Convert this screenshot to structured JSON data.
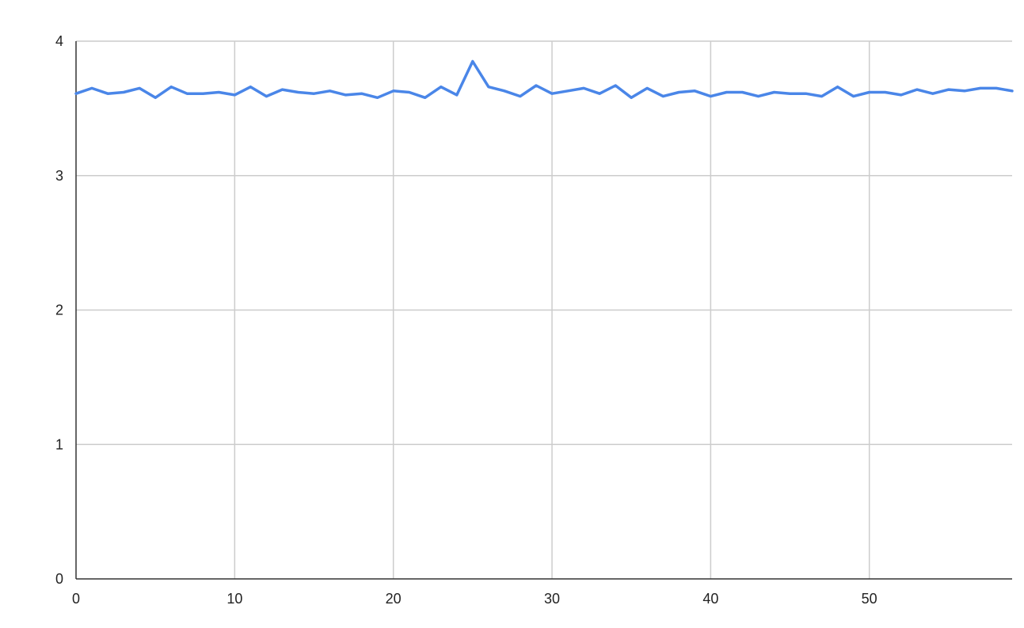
{
  "chart_data": {
    "type": "line",
    "title": "",
    "xlabel": "",
    "ylabel": "",
    "xlim": [
      0,
      59
    ],
    "ylim": [
      0,
      4
    ],
    "x_ticks": [
      0,
      10,
      20,
      30,
      40,
      50
    ],
    "y_ticks": [
      0,
      1,
      2,
      3,
      4
    ],
    "grid": true,
    "legend": "none",
    "colors": {
      "line": "#4a86e8",
      "grid": "#cccccc",
      "axis": "#333333"
    },
    "series": [
      {
        "x": [
          0,
          1,
          2,
          3,
          4,
          5,
          6,
          7,
          8,
          9,
          10,
          11,
          12,
          13,
          14,
          15,
          16,
          17,
          18,
          19,
          20,
          21,
          22,
          23,
          24,
          25,
          26,
          27,
          28,
          29,
          30,
          31,
          32,
          33,
          34,
          35,
          36,
          37,
          38,
          39,
          40,
          41,
          42,
          43,
          44,
          45,
          46,
          47,
          48,
          49,
          50,
          51,
          52,
          53,
          54,
          55,
          56,
          57,
          58,
          59
        ],
        "values": [
          3.61,
          3.65,
          3.61,
          3.62,
          3.65,
          3.58,
          3.66,
          3.61,
          3.61,
          3.62,
          3.6,
          3.66,
          3.59,
          3.64,
          3.62,
          3.61,
          3.63,
          3.6,
          3.61,
          3.58,
          3.63,
          3.62,
          3.58,
          3.66,
          3.6,
          3.85,
          3.66,
          3.63,
          3.59,
          3.67,
          3.61,
          3.63,
          3.65,
          3.61,
          3.67,
          3.58,
          3.65,
          3.59,
          3.62,
          3.63,
          3.59,
          3.62,
          3.62,
          3.59,
          3.62,
          3.61,
          3.61,
          3.59,
          3.66,
          3.59,
          3.62,
          3.62,
          3.6,
          3.64,
          3.61,
          3.64,
          3.63,
          3.65,
          3.65,
          3.63
        ]
      }
    ]
  }
}
